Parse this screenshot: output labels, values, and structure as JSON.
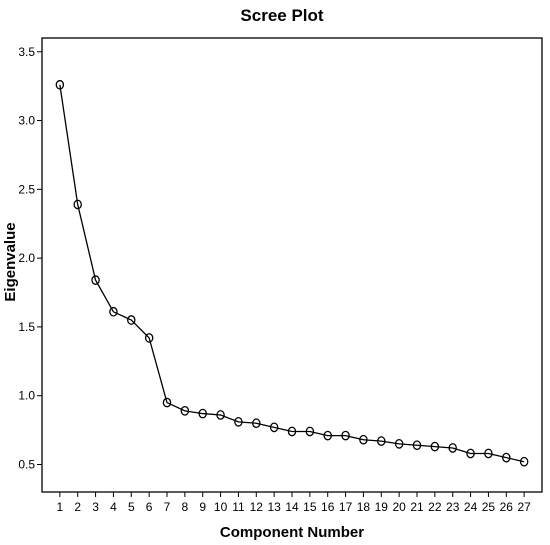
{
  "chart_data": {
    "type": "line",
    "title": "Scree Plot",
    "xlabel": "Component Number",
    "ylabel": "Eigenvalue",
    "x": [
      1,
      2,
      3,
      4,
      5,
      6,
      7,
      8,
      9,
      10,
      11,
      12,
      13,
      14,
      15,
      16,
      17,
      18,
      19,
      20,
      21,
      22,
      23,
      24,
      25,
      26,
      27
    ],
    "x_tick_labels": [
      "1",
      "2",
      "3",
      "4",
      "5",
      "6",
      "7",
      "8",
      "9",
      "10",
      "11",
      "12",
      "13",
      "14",
      "15",
      "16",
      "17",
      "18",
      "19",
      "20",
      "21",
      "22",
      "23",
      "24",
      "25",
      "26",
      "27"
    ],
    "y_tick_values": [
      0.5,
      1.0,
      1.5,
      2.0,
      2.5,
      3.0,
      3.5
    ],
    "y_tick_labels": [
      "0.5",
      "1.0",
      "1.5",
      "2.0",
      "2.5",
      "3.0",
      "3.5"
    ],
    "ylim": [
      0.3,
      3.6
    ],
    "xlim": [
      0,
      28
    ],
    "series": [
      {
        "values": [
          3.26,
          2.39,
          1.84,
          1.61,
          1.55,
          1.42,
          0.95,
          0.89,
          0.87,
          0.86,
          0.81,
          0.8,
          0.77,
          0.74,
          0.74,
          0.71,
          0.71,
          0.68,
          0.67,
          0.65,
          0.64,
          0.63,
          0.62,
          0.58,
          0.58,
          0.55,
          0.52
        ]
      }
    ],
    "marker": "open-circle",
    "grid": false,
    "legend": "none",
    "colors": {
      "line": "#000000",
      "background": "#ffffff"
    }
  }
}
